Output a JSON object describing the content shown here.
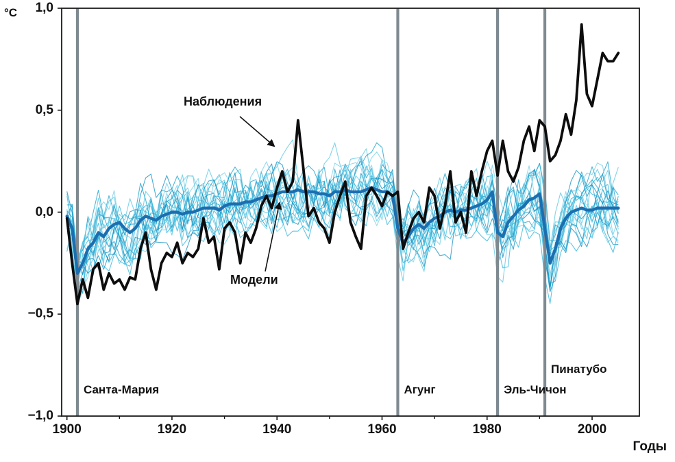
{
  "chart_data": {
    "type": "line",
    "title": "",
    "xlabel": "Годы",
    "ylabel": "°C",
    "x_range": [
      1899,
      2009
    ],
    "y_range": [
      -1.0,
      1.0
    ],
    "grid": false,
    "legend_position": "inline-annotations",
    "x": [
      1900,
      1901,
      1902,
      1903,
      1904,
      1905,
      1906,
      1907,
      1908,
      1909,
      1910,
      1911,
      1912,
      1913,
      1914,
      1915,
      1916,
      1917,
      1918,
      1919,
      1920,
      1921,
      1922,
      1923,
      1924,
      1925,
      1926,
      1927,
      1928,
      1929,
      1930,
      1931,
      1932,
      1933,
      1934,
      1935,
      1936,
      1937,
      1938,
      1939,
      1940,
      1941,
      1942,
      1943,
      1944,
      1945,
      1946,
      1947,
      1948,
      1949,
      1950,
      1951,
      1952,
      1953,
      1954,
      1955,
      1956,
      1957,
      1958,
      1959,
      1960,
      1961,
      1962,
      1963,
      1964,
      1965,
      1966,
      1967,
      1968,
      1969,
      1970,
      1971,
      1972,
      1973,
      1974,
      1975,
      1976,
      1977,
      1978,
      1979,
      1980,
      1981,
      1982,
      1983,
      1984,
      1985,
      1986,
      1987,
      1988,
      1989,
      1990,
      1991,
      1992,
      1993,
      1994,
      1995,
      1996,
      1997,
      1998,
      1999,
      2000,
      2001,
      2002,
      2003,
      2004,
      2005
    ],
    "series": [
      {
        "name": "Наблюдения",
        "color": "#0d0d0d",
        "width": 3.8,
        "values": [
          -0.03,
          -0.25,
          -0.45,
          -0.33,
          -0.42,
          -0.28,
          -0.25,
          -0.38,
          -0.3,
          -0.35,
          -0.33,
          -0.38,
          -0.32,
          -0.33,
          -0.18,
          -0.1,
          -0.28,
          -0.38,
          -0.25,
          -0.2,
          -0.22,
          -0.15,
          -0.25,
          -0.2,
          -0.22,
          -0.18,
          -0.03,
          -0.15,
          -0.12,
          -0.28,
          -0.08,
          -0.05,
          -0.1,
          -0.25,
          -0.1,
          -0.15,
          -0.08,
          0.03,
          0.08,
          0.02,
          0.12,
          0.2,
          0.1,
          0.15,
          0.45,
          0.22,
          -0.02,
          0.02,
          -0.05,
          -0.08,
          -0.15,
          0.0,
          0.08,
          0.15,
          -0.05,
          -0.12,
          -0.18,
          0.08,
          0.12,
          0.08,
          0.03,
          0.1,
          0.08,
          0.1,
          -0.18,
          -0.1,
          -0.03,
          0.0,
          -0.05,
          0.12,
          0.08,
          -0.08,
          0.03,
          0.2,
          -0.05,
          0.0,
          -0.1,
          0.2,
          0.08,
          0.2,
          0.3,
          0.35,
          0.18,
          0.35,
          0.2,
          0.15,
          0.22,
          0.35,
          0.42,
          0.3,
          0.45,
          0.42,
          0.25,
          0.28,
          0.35,
          0.48,
          0.38,
          0.55,
          0.92,
          0.58,
          0.52,
          0.65,
          0.78,
          0.74,
          0.74,
          0.78
        ]
      },
      {
        "name": "Модели",
        "color": "#1b6fb0",
        "width": 4.4,
        "values": [
          -0.02,
          -0.08,
          -0.3,
          -0.25,
          -0.18,
          -0.15,
          -0.1,
          -0.12,
          -0.08,
          -0.06,
          -0.05,
          -0.08,
          -0.1,
          -0.08,
          -0.04,
          -0.02,
          -0.03,
          -0.04,
          -0.02,
          -0.01,
          0.0,
          0.0,
          -0.01,
          0.0,
          0.0,
          0.01,
          0.02,
          0.02,
          0.02,
          0.01,
          0.03,
          0.04,
          0.04,
          0.04,
          0.05,
          0.05,
          0.06,
          0.07,
          0.08,
          0.08,
          0.09,
          0.1,
          0.1,
          0.1,
          0.11,
          0.1,
          0.1,
          0.1,
          0.09,
          0.09,
          0.08,
          0.1,
          0.1,
          0.11,
          0.1,
          0.1,
          0.1,
          0.11,
          0.12,
          0.11,
          0.1,
          0.1,
          0.08,
          -0.08,
          -0.15,
          -0.12,
          -0.08,
          -0.06,
          -0.08,
          -0.05,
          -0.03,
          -0.02,
          0.0,
          0.01,
          0.0,
          0.01,
          0.01,
          0.02,
          0.03,
          0.04,
          0.06,
          0.1,
          -0.1,
          -0.12,
          -0.05,
          -0.02,
          0.01,
          0.03,
          0.06,
          0.07,
          0.09,
          -0.08,
          -0.25,
          -0.18,
          -0.08,
          -0.03,
          0.0,
          0.01,
          0.02,
          0.01,
          0.01,
          0.02,
          0.02,
          0.02,
          0.02,
          0.02
        ]
      }
    ],
    "ensemble": {
      "count": 20,
      "seed": 11,
      "spread": 0.12,
      "colors": [
        "#2fb3d9",
        "#56c5e2",
        "#18a0cc",
        "#74cfe6",
        "#0e8fc0"
      ]
    },
    "eruptions": [
      {
        "year": 1902,
        "label": "Санта-Мария"
      },
      {
        "year": 1963,
        "label": "Агунг"
      },
      {
        "year": 1982,
        "label": "Эль-Чичон"
      },
      {
        "year": 1991,
        "label": "Пинатубо"
      }
    ],
    "eruption_line_color": "#7e8a90",
    "annotations": {
      "observations": "Наблюдения",
      "models": "Модели"
    },
    "xticks": [
      {
        "v": 1900,
        "label": "1900"
      },
      {
        "v": 1920,
        "label": "1920"
      },
      {
        "v": 1940,
        "label": "1940"
      },
      {
        "v": 1960,
        "label": "1960"
      },
      {
        "v": 1980,
        "label": "1980"
      },
      {
        "v": 2000,
        "label": "2000"
      }
    ],
    "yticks": [
      {
        "v": 1.0,
        "label": "1,0"
      },
      {
        "v": 0.5,
        "label": "0,5"
      },
      {
        "v": 0.0,
        "label": "0,0"
      },
      {
        "v": -0.5,
        "label": "−0,5"
      },
      {
        "v": -1.0,
        "label": "−1,0"
      }
    ]
  }
}
